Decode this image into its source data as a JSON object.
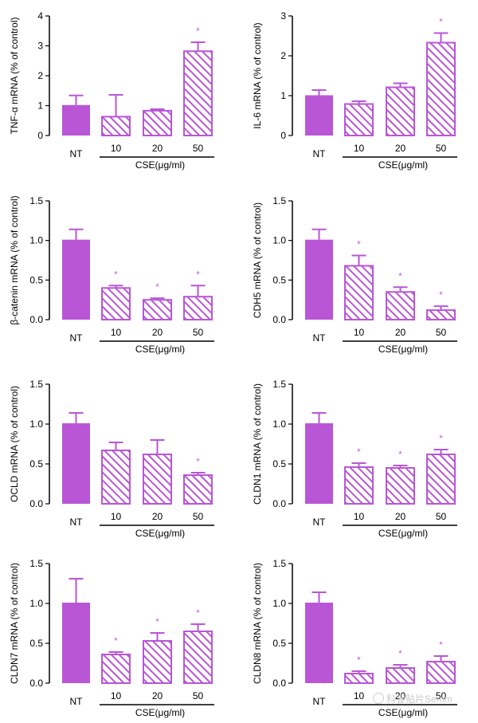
{
  "colors": {
    "nt_fill": "#b956d6",
    "stripe": "#b956d6",
    "star": "#c162d9",
    "axis": "#000000"
  },
  "watermark": {
    "text": "科睿贴片Semm",
    "icon": "wechat-icon"
  },
  "chart_data": [
    {
      "type": "bar",
      "title": "",
      "ylabel": "TNF-α mRNA (% of control)",
      "xlabel": "CSE(μg/ml)",
      "categories": [
        "NT",
        "10",
        "20",
        "50"
      ],
      "group_label": "CSE(μg/ml)",
      "values": [
        1.02,
        0.63,
        0.83,
        2.82
      ],
      "errors": [
        0.32,
        0.73,
        0.05,
        0.3
      ],
      "significant": [
        false,
        false,
        false,
        true
      ],
      "sig_marker": "*",
      "ylim": [
        0,
        4
      ],
      "yticks": [
        "0",
        "1",
        "2",
        "3",
        "4"
      ]
    },
    {
      "type": "bar",
      "title": "",
      "ylabel": "IL-6 mRNA (% of control)",
      "xlabel": "CSE(μg/ml)",
      "categories": [
        "NT",
        "10",
        "20",
        "50"
      ],
      "group_label": "CSE(μg/ml)",
      "values": [
        1.01,
        0.79,
        1.21,
        2.33
      ],
      "errors": [
        0.13,
        0.07,
        0.1,
        0.24
      ],
      "significant": [
        false,
        false,
        false,
        true
      ],
      "sig_marker": "*",
      "ylim": [
        0,
        3
      ],
      "yticks": [
        "0",
        "1",
        "2",
        "3"
      ]
    },
    {
      "type": "bar",
      "title": "",
      "ylabel": "β-catenin mRNA (% of control)",
      "xlabel": "CSE(μg/ml)",
      "categories": [
        "NT",
        "10",
        "20",
        "50"
      ],
      "group_label": "CSE(μg/ml)",
      "values": [
        1.01,
        0.4,
        0.25,
        0.29
      ],
      "errors": [
        0.13,
        0.03,
        0.02,
        0.14
      ],
      "significant": [
        false,
        true,
        true,
        true
      ],
      "sig_marker": "*",
      "ylim": [
        0,
        1.5
      ],
      "yticks": [
        "0.0",
        "0.5",
        "1.0",
        "1.5"
      ]
    },
    {
      "type": "bar",
      "title": "",
      "ylabel": "CDH5 mRNA (% of control)",
      "xlabel": "CSE(μg/ml)",
      "categories": [
        "NT",
        "10",
        "20",
        "50"
      ],
      "group_label": "CSE(μg/ml)",
      "values": [
        1.01,
        0.68,
        0.35,
        0.12
      ],
      "errors": [
        0.13,
        0.13,
        0.06,
        0.05
      ],
      "significant": [
        false,
        true,
        true,
        true
      ],
      "sig_marker": "*",
      "ylim": [
        0,
        1.5
      ],
      "yticks": [
        "0.0",
        "0.5",
        "1.0",
        "1.5"
      ]
    },
    {
      "type": "bar",
      "title": "",
      "ylabel": "OCLD mRNA (% of control)",
      "xlabel": "CSE(μg/ml)",
      "categories": [
        "NT",
        "10",
        "20",
        "50"
      ],
      "group_label": "CSE(μg/ml)",
      "values": [
        1.01,
        0.67,
        0.62,
        0.36
      ],
      "errors": [
        0.13,
        0.1,
        0.18,
        0.03
      ],
      "significant": [
        false,
        false,
        false,
        true
      ],
      "sig_marker": "*",
      "ylim": [
        0,
        1.5
      ],
      "yticks": [
        "0.0",
        "0.5",
        "1.0",
        "1.5"
      ]
    },
    {
      "type": "bar",
      "title": "",
      "ylabel": "CLDN1 mRNA (% of control)",
      "xlabel": "CSE(μg/ml)",
      "categories": [
        "NT",
        "10",
        "20",
        "50"
      ],
      "group_label": "CSE(μg/ml)",
      "values": [
        1.01,
        0.46,
        0.45,
        0.62
      ],
      "errors": [
        0.13,
        0.05,
        0.03,
        0.06
      ],
      "significant": [
        false,
        true,
        true,
        true
      ],
      "sig_marker": "*",
      "ylim": [
        0,
        1.5
      ],
      "yticks": [
        "0.0",
        "0.5",
        "1.0",
        "1.5"
      ]
    },
    {
      "type": "bar",
      "title": "",
      "ylabel": "CLDN7 mRNA (% of control)",
      "xlabel": "CSE(μg/ml)",
      "categories": [
        "NT",
        "10",
        "20",
        "50"
      ],
      "group_label": "CSE(μg/ml)",
      "values": [
        1.01,
        0.36,
        0.53,
        0.65
      ],
      "errors": [
        0.3,
        0.03,
        0.1,
        0.09
      ],
      "significant": [
        false,
        true,
        true,
        true
      ],
      "sig_marker": "*",
      "ylim": [
        0,
        1.5
      ],
      "yticks": [
        "0.0",
        "0.5",
        "1.0",
        "1.5"
      ]
    },
    {
      "type": "bar",
      "title": "",
      "ylabel": "CLDN8 mRNA (% of control)",
      "xlabel": "CSE(μg/ml)",
      "categories": [
        "NT",
        "10",
        "20",
        "50"
      ],
      "group_label": "CSE(μg/ml)",
      "values": [
        1.01,
        0.12,
        0.19,
        0.27
      ],
      "errors": [
        0.13,
        0.03,
        0.04,
        0.07
      ],
      "significant": [
        false,
        true,
        true,
        true
      ],
      "sig_marker": "*",
      "ylim": [
        0,
        1.5
      ],
      "yticks": [
        "0.0",
        "0.5",
        "1.0",
        "1.5"
      ]
    }
  ]
}
